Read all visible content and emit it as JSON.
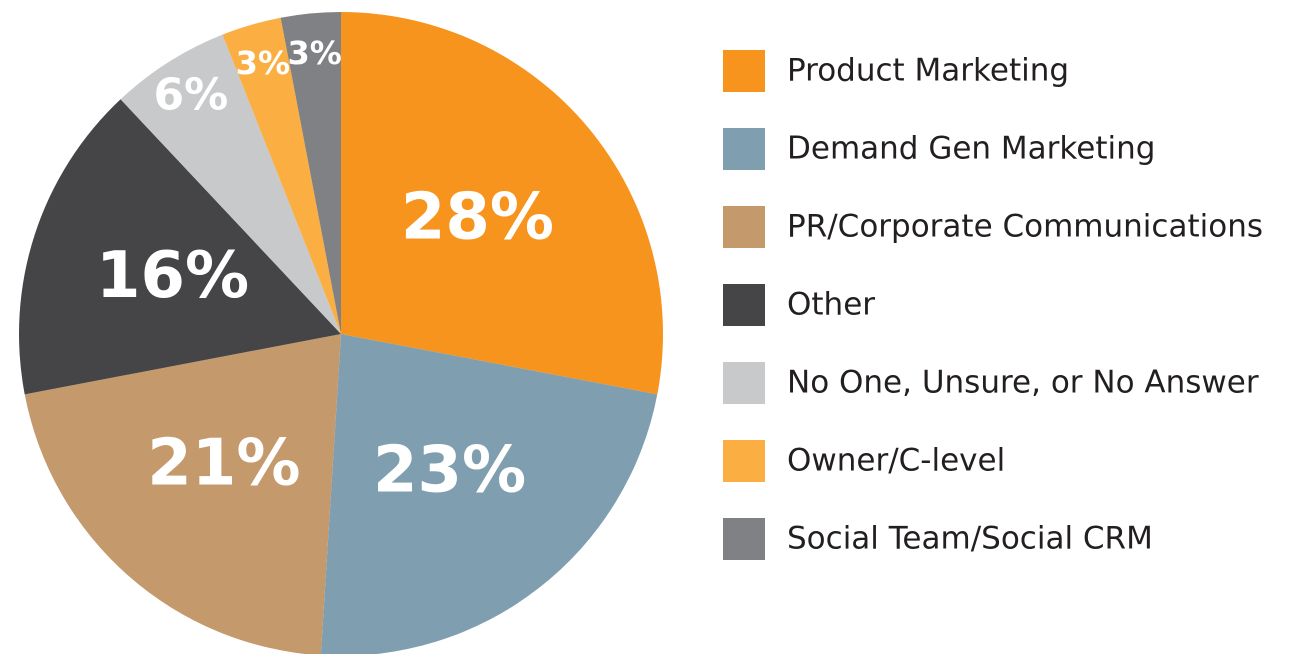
{
  "chart_data": {
    "type": "pie",
    "categories": [
      "Product Marketing",
      "Demand Gen Marketing",
      "PR/Corporate Communications",
      "Other",
      "No One, Unsure, or No Answer",
      "Owner/C-level",
      "Social Team/Social CRM"
    ],
    "values": [
      28,
      23,
      21,
      16,
      6,
      3,
      3
    ],
    "value_labels": [
      "28%",
      "23%",
      "21%",
      "16%",
      "6%",
      "3%",
      "3%"
    ],
    "colors": [
      "#f7941d",
      "#7f9fb0",
      "#c49a6c",
      "#454547",
      "#c8c9cb",
      "#fbae42",
      "#808184"
    ],
    "legend": "right"
  }
}
